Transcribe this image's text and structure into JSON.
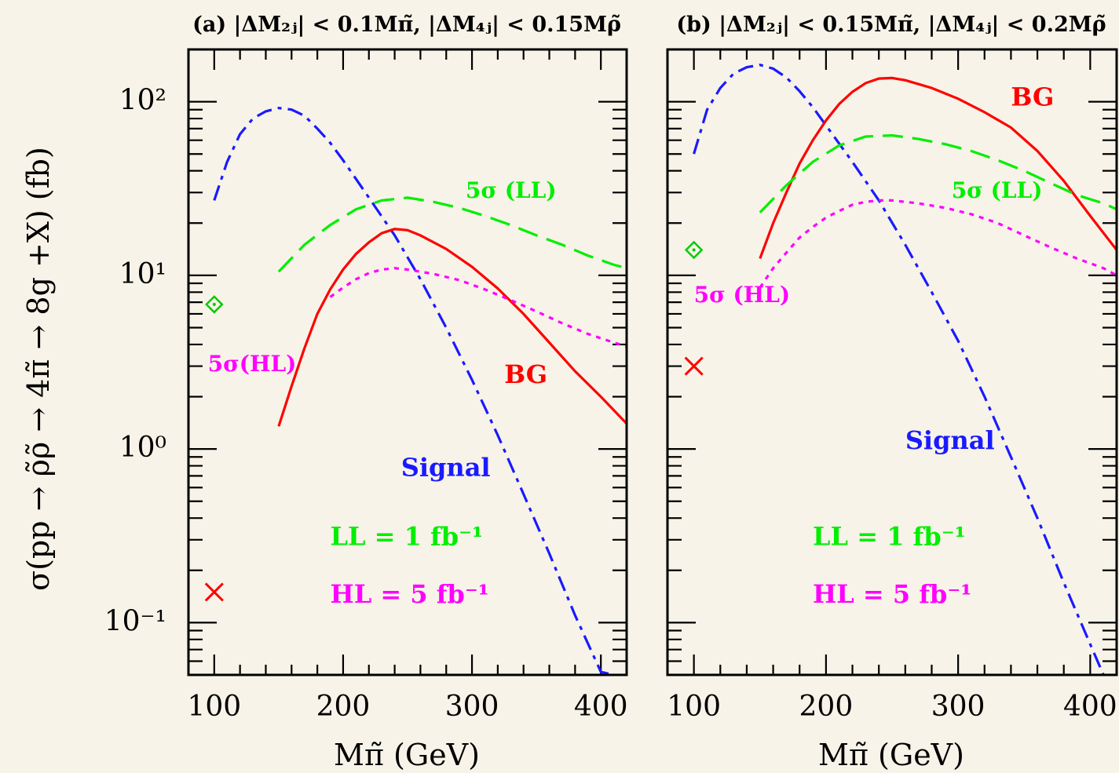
{
  "ylabel": "σ(pp → ρ̃ρ̃ → 4π̃ → 8g +X) (fb)",
  "colors": {
    "signal": "#1a1aff",
    "bg": "#ff0000",
    "ll": "#00ee00",
    "hl": "#ff00ff",
    "marker_green": "#00cc00",
    "marker_red": "#ff0000"
  },
  "chart_data": [
    {
      "type": "line",
      "title": "(a) |ΔM₂ⱼ| < 0.1Mπ̃, |ΔM₄ⱼ| < 0.15Mρ̃",
      "xlabel": "Mπ̃ (GeV)",
      "ylabel": "σ(pp → ρ̃ρ̃ → 4π̃ → 8g +X) (fb)",
      "xlim": [
        80,
        420
      ],
      "ylim": [
        0.05,
        200
      ],
      "yscale": "log",
      "xticks": [
        100,
        200,
        300,
        400
      ],
      "yticks": [
        {
          "value": 0.1,
          "label": "10⁻¹"
        },
        {
          "value": 1,
          "label": "10⁰"
        },
        {
          "value": 10,
          "label": "10¹"
        },
        {
          "value": 100,
          "label": "10²"
        }
      ],
      "series": [
        {
          "key": "signal",
          "style": "dashdot",
          "x": [
            100,
            110,
            120,
            130,
            140,
            150,
            160,
            170,
            180,
            190,
            200,
            220,
            240,
            260,
            280,
            300,
            320,
            340,
            360,
            380,
            400,
            410
          ],
          "y": [
            27,
            45,
            65,
            80,
            88,
            92,
            90,
            83,
            70,
            58,
            46,
            28,
            17,
            9.5,
            5,
            2.5,
            1.2,
            0.55,
            0.25,
            0.11,
            0.052,
            0.038
          ]
        },
        {
          "key": "bg",
          "style": "solid",
          "x": [
            150,
            160,
            170,
            180,
            190,
            200,
            210,
            220,
            230,
            240,
            250,
            260,
            280,
            300,
            320,
            340,
            360,
            380,
            400,
            420
          ],
          "y": [
            1.35,
            2.3,
            3.8,
            6.0,
            8.3,
            10.8,
            13.3,
            15.5,
            17.5,
            18.5,
            18.2,
            17.0,
            14.2,
            11.2,
            8.4,
            6.0,
            4.1,
            2.8,
            2.0,
            1.4
          ]
        },
        {
          "key": "ll",
          "style": "dashed",
          "x": [
            150,
            170,
            190,
            210,
            230,
            250,
            270,
            290,
            310,
            330,
            350,
            370,
            390,
            410,
            420
          ],
          "y": [
            10.5,
            15,
            19.5,
            24,
            27,
            28,
            26.5,
            24.5,
            22,
            19.5,
            17,
            15,
            13,
            11.5,
            11
          ]
        },
        {
          "key": "hl",
          "style": "dotted",
          "x": [
            190,
            200,
            210,
            220,
            230,
            240,
            250,
            270,
            290,
            310,
            330,
            350,
            370,
            390,
            410,
            420
          ],
          "y": [
            7.5,
            8.5,
            9.5,
            10.3,
            10.8,
            11.0,
            10.8,
            10.2,
            9.4,
            8.3,
            7.2,
            6.2,
            5.3,
            4.6,
            4.1,
            3.9
          ]
        }
      ],
      "markers": [
        {
          "key": "marker_green",
          "shape": "diamond",
          "x": 100,
          "y": 6.8
        },
        {
          "key": "marker_red",
          "shape": "cross",
          "x": 100,
          "y": 0.15
        }
      ],
      "annotations": [
        {
          "key": "ll",
          "text": "5σ (LL)",
          "x": 295,
          "y": 28,
          "size": "small"
        },
        {
          "key": "hl",
          "text": "5σ(HL)",
          "x": 95,
          "y": 2.8,
          "size": "small"
        },
        {
          "key": "bg",
          "text": "BG",
          "x": 325,
          "y": 2.4,
          "size": "big"
        },
        {
          "key": "signal",
          "text": "Signal",
          "x": 245,
          "y": 0.7,
          "size": "big"
        },
        {
          "key": "ll",
          "text": "LL = 1 fb⁻¹",
          "x": 190,
          "y": 0.28,
          "size": "big"
        },
        {
          "key": "hl",
          "text": "HL = 5 fb⁻¹",
          "x": 190,
          "y": 0.13,
          "size": "big"
        }
      ]
    },
    {
      "type": "line",
      "title": "(b) |ΔM₂ⱼ| < 0.15Mπ̃, |ΔM₄ⱼ| < 0.2Mρ̃",
      "xlabel": "Mπ̃ (GeV)",
      "ylabel": "",
      "xlim": [
        80,
        420
      ],
      "ylim": [
        0.05,
        200
      ],
      "yscale": "log",
      "xticks": [
        100,
        200,
        300,
        400
      ],
      "yticks": [
        {
          "value": 0.1,
          "label": ""
        },
        {
          "value": 1,
          "label": ""
        },
        {
          "value": 10,
          "label": ""
        },
        {
          "value": 100,
          "label": ""
        }
      ],
      "series": [
        {
          "key": "signal",
          "style": "dashdot",
          "x": [
            100,
            110,
            120,
            130,
            140,
            150,
            160,
            170,
            180,
            190,
            200,
            220,
            240,
            260,
            280,
            300,
            320,
            340,
            360,
            380,
            400,
            410
          ],
          "y": [
            50,
            90,
            120,
            145,
            158,
            163,
            155,
            138,
            115,
            93,
            73,
            45,
            27,
            15,
            8,
            4.2,
            2.0,
            0.9,
            0.4,
            0.17,
            0.075,
            0.05
          ]
        },
        {
          "key": "bg",
          "style": "solid",
          "x": [
            150,
            160,
            170,
            180,
            190,
            200,
            210,
            220,
            230,
            240,
            250,
            260,
            280,
            300,
            320,
            340,
            360,
            380,
            400,
            420
          ],
          "y": [
            12.5,
            20,
            30,
            44,
            60,
            78,
            97,
            114,
            128,
            136,
            137,
            133,
            120,
            104,
            87,
            71,
            52,
            35,
            22,
            14
          ]
        },
        {
          "key": "ll",
          "style": "dashed",
          "x": [
            150,
            170,
            190,
            210,
            230,
            250,
            270,
            290,
            310,
            330,
            350,
            370,
            390,
            410,
            420
          ],
          "y": [
            23,
            33,
            45,
            56,
            63,
            64,
            61,
            57,
            52,
            46,
            40,
            34,
            29,
            26,
            24
          ]
        },
        {
          "key": "hl",
          "style": "dotted",
          "x": [
            150,
            160,
            170,
            180,
            190,
            200,
            210,
            220,
            230,
            240,
            250,
            270,
            290,
            310,
            330,
            350,
            370,
            390,
            410,
            420
          ],
          "y": [
            8.5,
            11,
            13.5,
            16.5,
            19,
            21.5,
            23.5,
            25.5,
            26.5,
            27,
            27,
            26,
            24.5,
            22.5,
            20,
            17,
            14.5,
            12.5,
            11,
            10
          ]
        }
      ],
      "markers": [
        {
          "key": "marker_green",
          "shape": "diamond",
          "x": 100,
          "y": 14
        },
        {
          "key": "marker_red",
          "shape": "cross",
          "x": 100,
          "y": 3.0
        }
      ],
      "annotations": [
        {
          "key": "bg",
          "text": "BG",
          "x": 340,
          "y": 95,
          "size": "big"
        },
        {
          "key": "ll",
          "text": "5σ (LL)",
          "x": 295,
          "y": 28,
          "size": "small"
        },
        {
          "key": "hl",
          "text": "5σ (HL)",
          "x": 100,
          "y": 7.0,
          "size": "small"
        },
        {
          "key": "signal",
          "text": "Signal",
          "x": 260,
          "y": 1.0,
          "size": "big"
        },
        {
          "key": "ll",
          "text": "LL = 1 fb⁻¹",
          "x": 190,
          "y": 0.28,
          "size": "big"
        },
        {
          "key": "hl",
          "text": "HL = 5 fb⁻¹",
          "x": 190,
          "y": 0.13,
          "size": "big"
        }
      ]
    }
  ]
}
